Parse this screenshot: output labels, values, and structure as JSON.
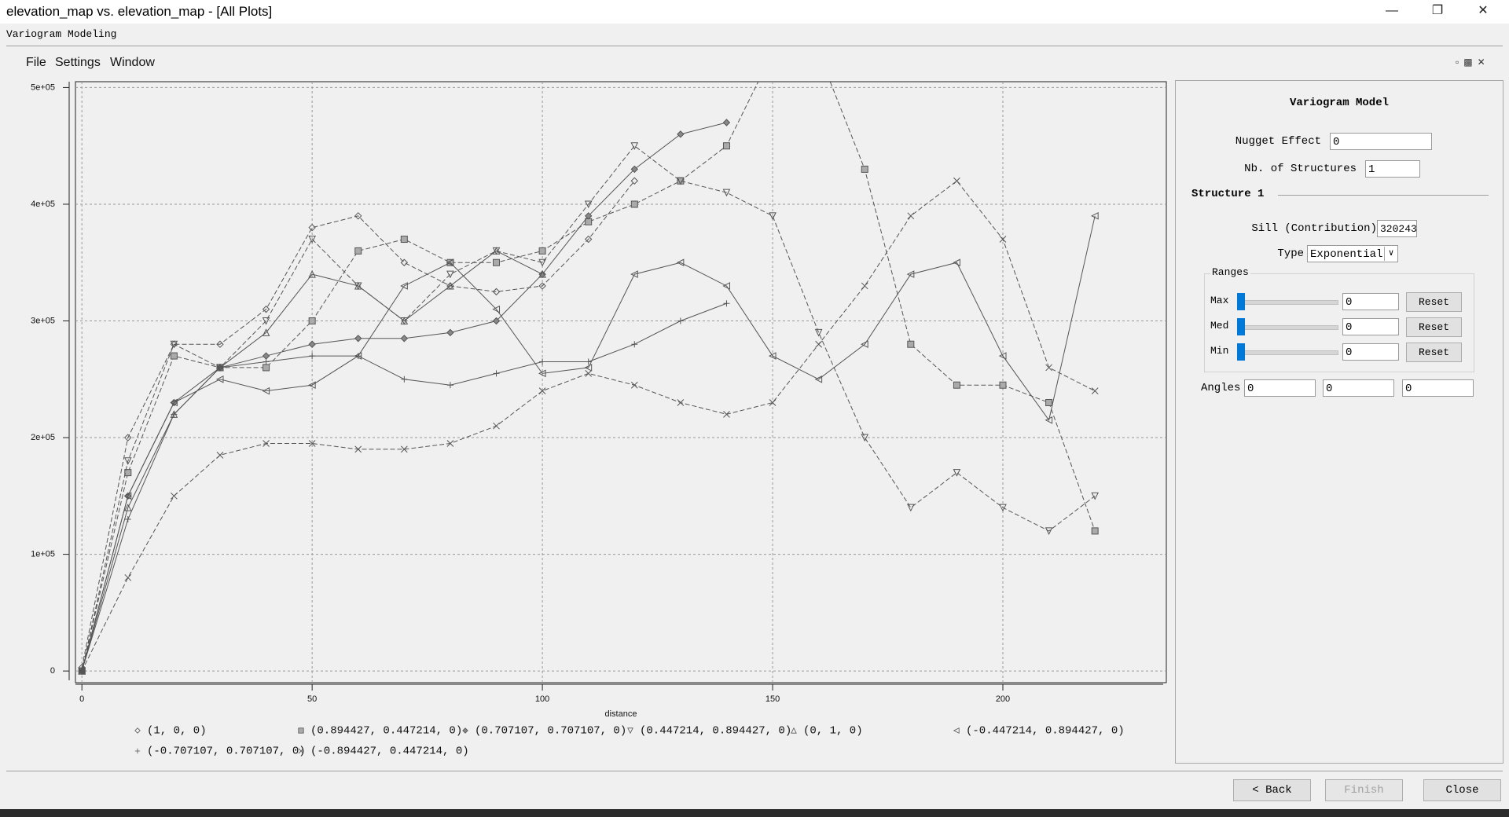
{
  "window": {
    "title": "elevation_map vs. elevation_map - [All Plots]"
  },
  "app_header": "Variogram Modeling",
  "menu": [
    "File",
    "Settings",
    "Window"
  ],
  "chart_data": {
    "type": "line",
    "x_label": "distance",
    "x": [
      0,
      10,
      20,
      30,
      40,
      50,
      60,
      70,
      80,
      90,
      100,
      110,
      120,
      130,
      140,
      150,
      160,
      170,
      180,
      190,
      200,
      210,
      220
    ],
    "xlim": [
      -1.4,
      235.5
    ],
    "xticks": [
      0,
      50,
      100,
      150,
      200
    ],
    "ylim": [
      -10000,
      505000
    ],
    "yticks": [
      0,
      {
        "value": 100000,
        "label": "1e+05"
      },
      {
        "value": 200000,
        "label": "2e+05"
      },
      {
        "value": 300000,
        "label": "3e+05"
      },
      {
        "value": 400000,
        "label": "4e+05"
      },
      {
        "value": 500000,
        "label": "5e+05"
      }
    ],
    "grid": true,
    "series": [
      {
        "name": "(1, 0, 0)",
        "marker": "diamond",
        "line_style": "dashed",
        "color": "#555555",
        "values": [
          3000,
          200000,
          280000,
          280000,
          310000,
          380000,
          390000,
          350000,
          330000,
          325000,
          330000,
          370000,
          420000,
          null,
          null,
          null,
          null,
          null,
          null,
          null,
          null,
          null,
          null
        ]
      },
      {
        "name": "(0.894427, 0.447214, 0)",
        "marker": "square",
        "line_style": "dashed",
        "color": "#555555",
        "values": [
          0,
          170000,
          270000,
          260000,
          260000,
          300000,
          360000,
          370000,
          350000,
          350000,
          360000,
          385000,
          400000,
          420000,
          450000,
          530000,
          530000,
          430000,
          280000,
          245000,
          245000,
          230000,
          120000
        ]
      },
      {
        "name": "(0.707107, 0.707107, 0)",
        "marker": "diamond-filled",
        "line_style": "solid",
        "color": "#555555",
        "values": [
          0,
          150000,
          230000,
          260000,
          270000,
          280000,
          285000,
          285000,
          290000,
          300000,
          340000,
          390000,
          430000,
          460000,
          470000,
          null,
          null,
          null,
          null,
          null,
          null,
          null,
          null
        ]
      },
      {
        "name": "(0.447214, 0.894427, 0)",
        "marker": "triangle-down",
        "line_style": "dashed",
        "color": "#555555",
        "values": [
          0,
          180000,
          280000,
          260000,
          300000,
          370000,
          330000,
          300000,
          340000,
          360000,
          350000,
          400000,
          450000,
          420000,
          410000,
          390000,
          290000,
          200000,
          140000,
          170000,
          140000,
          120000,
          150000
        ]
      },
      {
        "name": "(0, 1, 0)",
        "marker": "triangle-up",
        "line_style": "solid",
        "color": "#555555",
        "values": [
          0,
          140000,
          220000,
          260000,
          290000,
          340000,
          330000,
          300000,
          330000,
          360000,
          340000,
          null,
          null,
          null,
          null,
          null,
          null,
          null,
          null,
          null,
          null,
          null,
          null
        ]
      },
      {
        "name": "(-0.447214, 0.894427, 0)",
        "marker": "triangle-left",
        "line_style": "solid",
        "color": "#555555",
        "values": [
          0,
          150000,
          230000,
          250000,
          240000,
          245000,
          270000,
          330000,
          350000,
          310000,
          255000,
          260000,
          340000,
          350000,
          330000,
          270000,
          250000,
          280000,
          340000,
          350000,
          270000,
          215000,
          390000
        ]
      },
      {
        "name": "(-0.707107, 0.707107, 0)",
        "marker": "plus",
        "line_style": "solid",
        "color": "#555555",
        "values": [
          0,
          130000,
          220000,
          260000,
          265000,
          270000,
          270000,
          250000,
          245000,
          255000,
          265000,
          265000,
          280000,
          300000,
          315000,
          null,
          null,
          null,
          null,
          null,
          null,
          null,
          null
        ]
      },
      {
        "name": "(-0.894427, 0.447214, 0)",
        "marker": "cross",
        "line_style": "dashed",
        "color": "#555555",
        "values": [
          0,
          80000,
          150000,
          185000,
          195000,
          195000,
          190000,
          190000,
          195000,
          210000,
          240000,
          255000,
          245000,
          230000,
          220000,
          230000,
          280000,
          330000,
          390000,
          420000,
          370000,
          260000,
          240000
        ]
      }
    ]
  },
  "panel": {
    "title": "Variogram Model",
    "nugget_label": "Nugget Effect",
    "nugget_value": 0,
    "structures_label": "Nb. of Structures",
    "structures_value": 1,
    "structure_heading": "Structure 1",
    "sill_label": "Sill (Contribution)",
    "sill_value": 320243,
    "type_label": "Type",
    "type_value": "Exponential",
    "ranges_label": "Ranges",
    "ranges": [
      {
        "label": "Max",
        "value": 0,
        "button": "Reset"
      },
      {
        "label": "Med",
        "value": 0,
        "button": "Reset"
      },
      {
        "label": "Min",
        "value": 0,
        "button": "Reset"
      }
    ],
    "angles_label": "Angles",
    "angles": [
      0,
      0,
      0
    ]
  },
  "buttons": [
    "< Back",
    "Finish",
    "Close"
  ]
}
